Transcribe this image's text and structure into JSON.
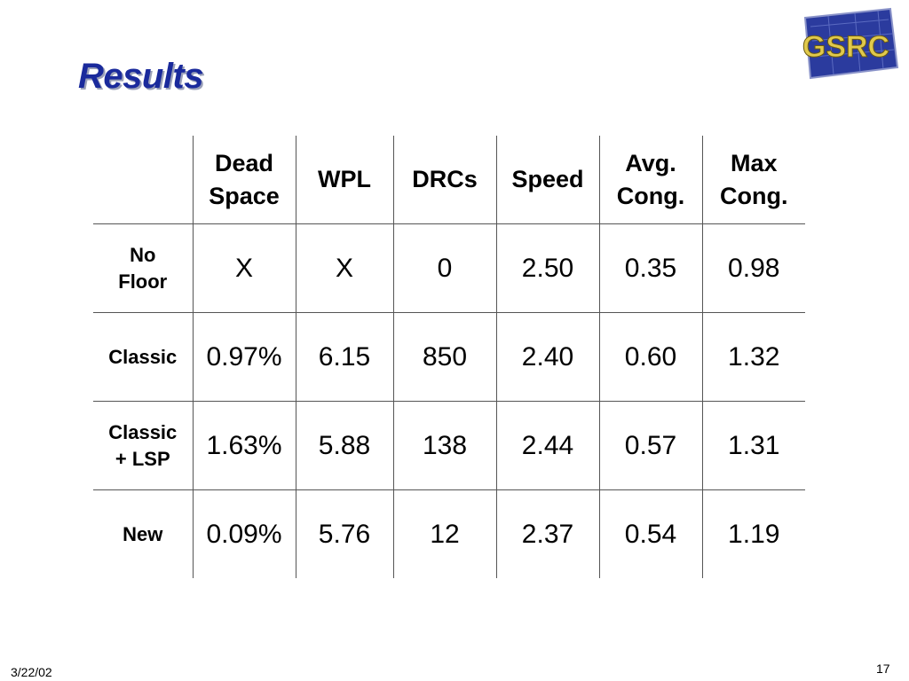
{
  "slide": {
    "title": "Results",
    "logo_text": "GSRC",
    "date": "3/22/02",
    "page_number": "17"
  },
  "table": {
    "columns": [
      "",
      "Dead\nSpace",
      "WPL",
      "DRCs",
      "Speed",
      "Avg.\nCong.",
      "Max\nCong."
    ],
    "rows": [
      {
        "label": "No\nFloor",
        "cells": [
          "X",
          "X",
          "0",
          "2.50",
          "0.35",
          "0.98"
        ]
      },
      {
        "label": "Classic",
        "cells": [
          "0.97%",
          "6.15",
          "850",
          "2.40",
          "0.60",
          "1.32"
        ]
      },
      {
        "label": "Classic\n+ LSP",
        "cells": [
          "1.63%",
          "5.88",
          "138",
          "2.44",
          "0.57",
          "1.31"
        ]
      },
      {
        "label": "New",
        "cells": [
          "0.09%",
          "5.76",
          "12",
          "2.37",
          "0.54",
          "1.19"
        ]
      }
    ]
  },
  "colors": {
    "title": "#1a2a9c",
    "logo_bg": "#2b3b9e",
    "logo_text": "#d8c24a",
    "grid": "#555555"
  }
}
